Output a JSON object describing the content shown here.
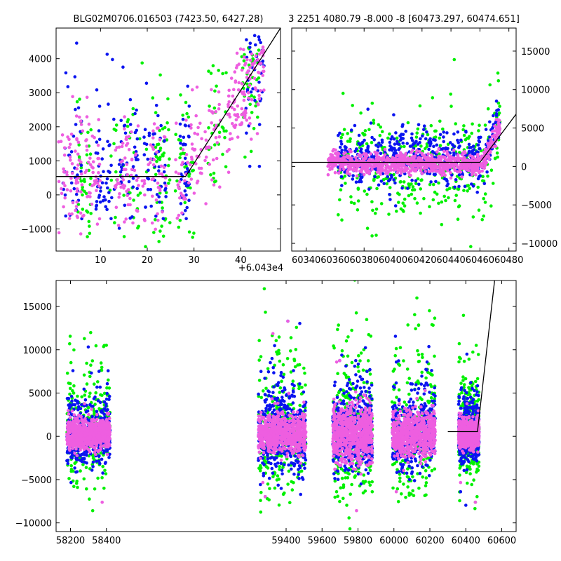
{
  "figure": {
    "title_left": "BLG02M0706.016503 (7423.50, 6427.28)",
    "title_right": "3 2251 4080.79 -8.000 -8 [60473.297, 60474.651]",
    "colors": {
      "blue": "#0a14f0",
      "green": "#00f000",
      "pink": "#ee5ee0",
      "line": "#000000"
    }
  },
  "chart_data": [
    {
      "name": "zoom-panel",
      "type": "scatter",
      "xlim": [
        0.5,
        48.5
      ],
      "ylim": [
        -1650,
        4900
      ],
      "x_offset_label": "+6.043e4",
      "xticks": [
        10,
        20,
        30,
        40
      ],
      "yticks": [
        -1000,
        0,
        1000,
        2000,
        3000,
        4000
      ],
      "series": [
        {
          "color": "blue",
          "x_range": [
            0.5,
            45.8
          ],
          "clusters": [
            [
              2,
              6
            ],
            [
              9,
              13
            ],
            [
              14,
              18
            ],
            [
              19,
              24
            ],
            [
              27,
              29
            ],
            [
              41,
              45
            ]
          ],
          "y_range": [
            -400,
            4600
          ],
          "spread": 1300,
          "count": 260
        },
        {
          "color": "green",
          "x_range": [
            0.5,
            45.8
          ],
          "clusters": [
            [
              5,
              8
            ],
            [
              12,
              20
            ],
            [
              21,
              25
            ],
            [
              26,
              30
            ],
            [
              33,
              37
            ],
            [
              40,
              44
            ]
          ],
          "y_range": [
            -1600,
            4300
          ],
          "spread": 1100,
          "count": 240
        },
        {
          "color": "pink",
          "x_range": [
            0.5,
            45.8
          ],
          "clusters": [
            [
              1,
              10
            ],
            [
              13,
              24
            ],
            [
              26,
              36
            ],
            [
              37,
              45
            ]
          ],
          "y_range": [
            -1000,
            4000
          ],
          "spread": 800,
          "count": 420
        }
      ],
      "model_line": {
        "x": [
          0.5,
          28.2,
          48.5
        ],
        "y": [
          540,
          540,
          4900
        ]
      }
    },
    {
      "name": "season-panel",
      "type": "scatter",
      "xlim": [
        60330,
        60485
      ],
      "ylim": [
        -11000,
        18000
      ],
      "yaxis_side": "right",
      "xticks": [
        60340,
        60360,
        60380,
        60400,
        60420,
        60440,
        60460,
        60480
      ],
      "yticks": [
        -10000,
        -5000,
        0,
        5000,
        10000,
        15000
      ],
      "series": [
        {
          "color": "blue",
          "x_range": [
            60362,
            60474
          ],
          "y_center": 1000,
          "spread": 1800,
          "count": 520
        },
        {
          "color": "green",
          "x_range": [
            60362,
            60474
          ],
          "y_center": 0,
          "spread": 3200,
          "count": 380
        },
        {
          "color": "pink",
          "x_range": [
            60355,
            60474
          ],
          "y_center": 400,
          "spread": 650,
          "count": 900
        }
      ],
      "model_line": {
        "x": [
          60330,
          60460,
          60485
        ],
        "y": [
          540,
          540,
          6800
        ]
      }
    },
    {
      "name": "full-panel",
      "type": "scatter",
      "xlim": [
        58120,
        60680
      ],
      "ylim": [
        -11000,
        18000
      ],
      "xticks": [
        58200,
        58400,
        59400,
        59600,
        59800,
        60000,
        60200,
        60400,
        60600
      ],
      "yticks": [
        -10000,
        -5000,
        0,
        5000,
        10000,
        15000
      ],
      "seasons": [
        {
          "range": [
            58180,
            58420
          ],
          "blue_spread": 2200,
          "green_spread": 4200,
          "pink_spread": 900
        },
        {
          "range": [
            59245,
            59510
          ],
          "blue_spread": 3200,
          "green_spread": 5000,
          "pink_spread": 1100
        },
        {
          "range": [
            59660,
            59880
          ],
          "blue_spread": 2800,
          "green_spread": 5200,
          "pink_spread": 1600
        },
        {
          "range": [
            59990,
            60230
          ],
          "blue_spread": 3000,
          "green_spread": 5000,
          "pink_spread": 1300
        },
        {
          "range": [
            60360,
            60474
          ],
          "blue_spread": 2200,
          "green_spread": 3500,
          "pink_spread": 800
        }
      ],
      "model_line": {
        "x": [
          60300,
          60465,
          60560
        ],
        "y": [
          540,
          540,
          18000
        ]
      }
    }
  ]
}
